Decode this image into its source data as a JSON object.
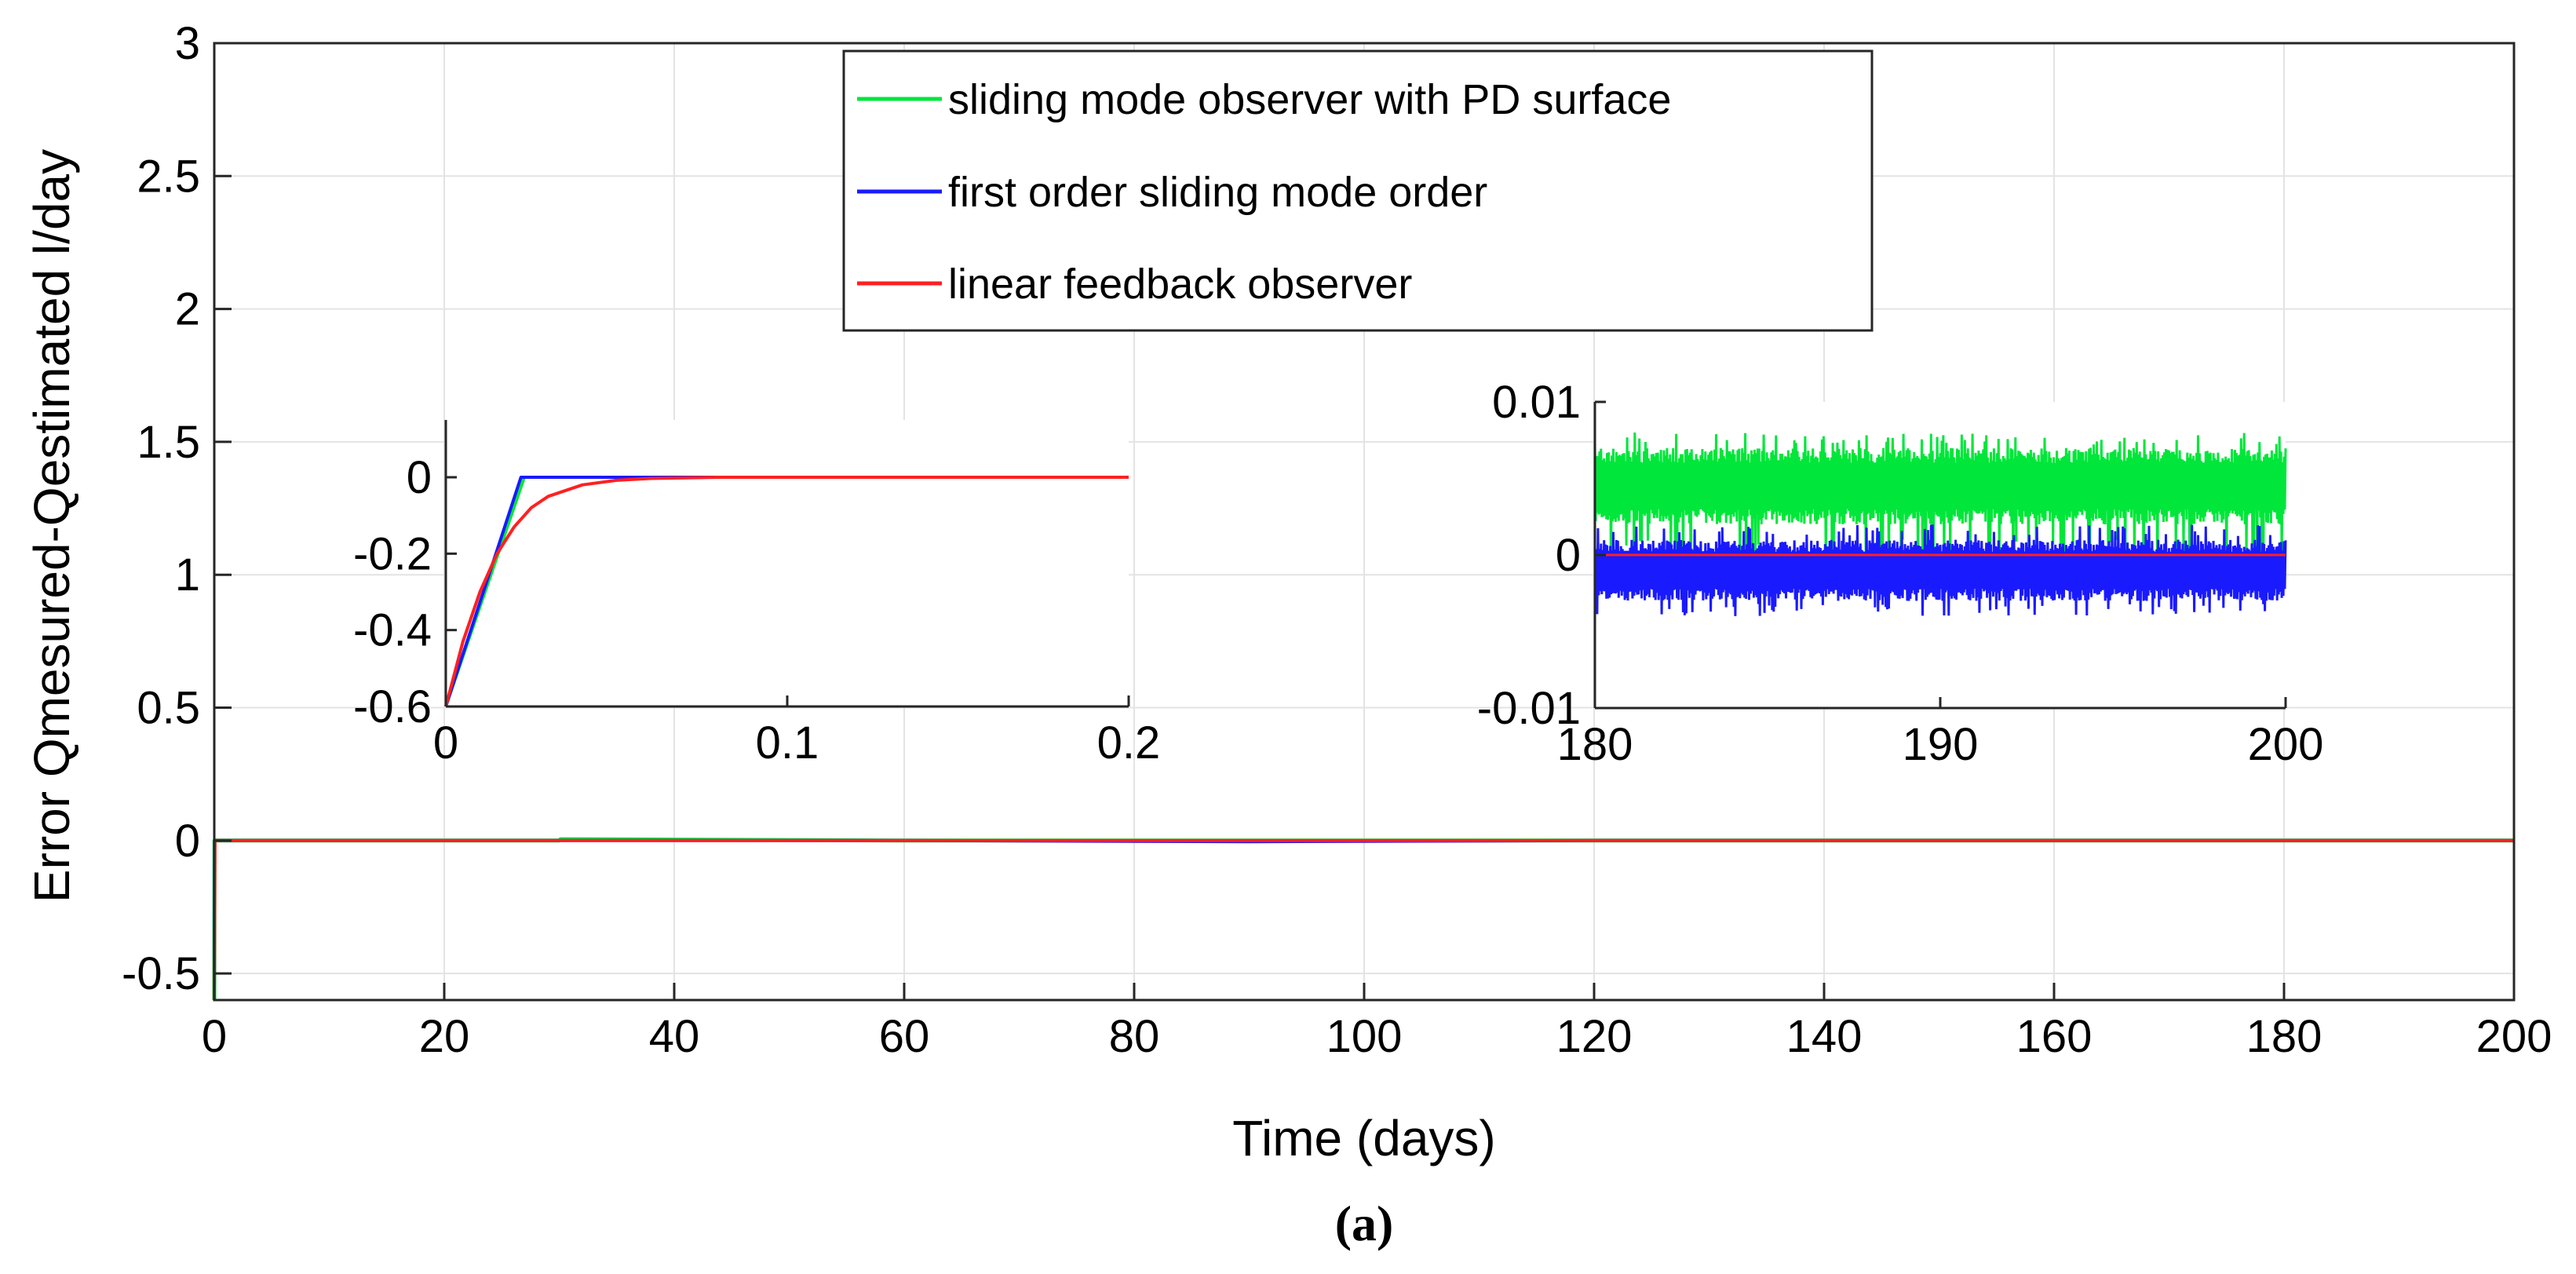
{
  "caption": "(a)",
  "chart_data": [
    {
      "id": "main",
      "type": "line",
      "title": "",
      "xlabel": "Time (days)",
      "ylabel": "Error Qmesured-Qestimated l/day",
      "xlim": [
        0,
        200
      ],
      "ylim": [
        -0.6,
        3
      ],
      "xticks": [
        0,
        20,
        40,
        60,
        80,
        100,
        120,
        140,
        160,
        180,
        200
      ],
      "yticks": [
        -0.5,
        0,
        0.5,
        1,
        1.5,
        2,
        2.5,
        3
      ],
      "xtick_labels": [
        "0",
        "20",
        "40",
        "60",
        "80",
        "100",
        "120",
        "140",
        "160",
        "180",
        "200"
      ],
      "ytick_labels": [
        "-0.5",
        "0",
        "0.5",
        "1",
        "1.5",
        "2",
        "2.5",
        "3"
      ],
      "grid": true,
      "legend_position": "top-center",
      "series": [
        {
          "name": "sliding mode observer with PD surface",
          "color": "#00e63a",
          "x": [
            0,
            0.02,
            30,
            30.1,
            60,
            120,
            200
          ],
          "y": [
            -0.6,
            0,
            0,
            0.005,
            0,
            0,
            0
          ]
        },
        {
          "name": "first order sliding mode order",
          "color": "#1a1aff",
          "x": [
            0,
            0.02,
            60,
            90,
            120,
            200
          ],
          "y": [
            -0.6,
            0,
            0,
            -0.004,
            0,
            0
          ]
        },
        {
          "name": "linear feedback observer",
          "color": "#ff2020",
          "x": [
            0,
            0.06,
            200
          ],
          "y": [
            -0.6,
            0,
            0
          ]
        }
      ]
    },
    {
      "id": "inset-left",
      "type": "line",
      "xlim": [
        0,
        0.2
      ],
      "ylim": [
        -0.6,
        0.15
      ],
      "xticks": [
        0,
        0.1,
        0.2
      ],
      "yticks": [
        -0.6,
        -0.4,
        -0.2,
        0
      ],
      "xtick_labels": [
        "0",
        "0.1",
        "0.2"
      ],
      "ytick_labels": [
        "-0.6",
        "-0.4",
        "-0.2",
        "0"
      ],
      "grid": false,
      "series": [
        {
          "name": "sliding mode observer with PD surface",
          "color": "#00e63a",
          "x": [
            0,
            0.023,
            0.2
          ],
          "y": [
            -0.6,
            0,
            0
          ]
        },
        {
          "name": "first order sliding mode order",
          "color": "#1a1aff",
          "x": [
            0,
            0.022,
            0.2
          ],
          "y": [
            -0.6,
            0,
            0
          ]
        },
        {
          "name": "linear feedback observer",
          "color": "#ff2020",
          "x": [
            0,
            0.005,
            0.01,
            0.015,
            0.02,
            0.025,
            0.03,
            0.04,
            0.05,
            0.06,
            0.08,
            0.1,
            0.2
          ],
          "y": [
            -0.6,
            -0.43,
            -0.3,
            -0.2,
            -0.13,
            -0.08,
            -0.05,
            -0.02,
            -0.008,
            -0.003,
            0,
            0,
            0
          ]
        }
      ]
    },
    {
      "id": "inset-right",
      "type": "line",
      "xlim": [
        180,
        200
      ],
      "ylim": [
        -0.01,
        0.01
      ],
      "xticks": [
        180,
        190,
        200
      ],
      "yticks": [
        -0.01,
        0,
        0.01
      ],
      "xtick_labels": [
        "180",
        "190",
        "200"
      ],
      "ytick_labels": [
        "-0.01",
        "0",
        "0.01"
      ],
      "grid": false,
      "series": [
        {
          "name": "sliding mode observer with PD surface",
          "color": "#00e63a",
          "band": [
            -0.002,
            0.008
          ],
          "typical_range": [
            0.002,
            0.007
          ]
        },
        {
          "name": "first order sliding mode order",
          "color": "#1a1aff",
          "band": [
            -0.004,
            0.002
          ],
          "typical_range": [
            -0.003,
            0.001
          ]
        },
        {
          "name": "linear feedback observer",
          "color": "#ff2020",
          "x": [
            180,
            200
          ],
          "y": [
            0,
            0
          ]
        }
      ]
    }
  ]
}
